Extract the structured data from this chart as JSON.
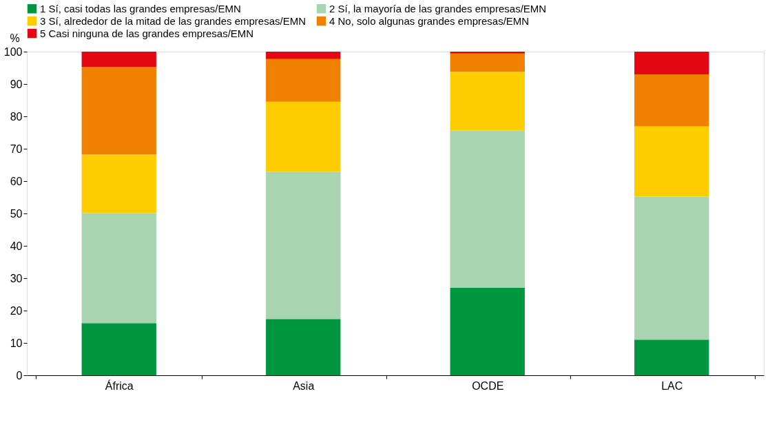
{
  "chart_data": {
    "type": "bar",
    "stacked": true,
    "ylabel": "%",
    "categories": [
      "África",
      "Asia",
      "OCDE",
      "LAC"
    ],
    "series": [
      {
        "name": "1 Sí, casi todas las grandes empresas/EMN",
        "color": "#009640",
        "values": [
          16.1,
          17.4,
          27.0,
          11.0
        ]
      },
      {
        "name": "2 Sí, la mayoría de las grandes empresas/EMN",
        "color": "#a8d5b0",
        "values": [
          34.0,
          45.4,
          48.6,
          44.2
        ]
      },
      {
        "name": "3 Sí, alrededor de la mitad de las grandes empresas/EMN",
        "color": "#ffcc00",
        "values": [
          18.1,
          21.7,
          18.2,
          21.7
        ]
      },
      {
        "name": "4 No, solo algunas grandes empresas/EMN",
        "color": "#f08000",
        "values": [
          27.1,
          13.2,
          5.6,
          16.1
        ]
      },
      {
        "name": "5 Casi ninguna de las grandes empresas/EMN",
        "color": "#e30613",
        "values": [
          4.7,
          2.3,
          0.6,
          7.0
        ]
      }
    ],
    "ylim": [
      0,
      100
    ],
    "yticks": [
      0,
      10,
      20,
      30,
      40,
      50,
      60,
      70,
      80,
      90,
      100
    ],
    "grid": false,
    "legend": "top"
  }
}
